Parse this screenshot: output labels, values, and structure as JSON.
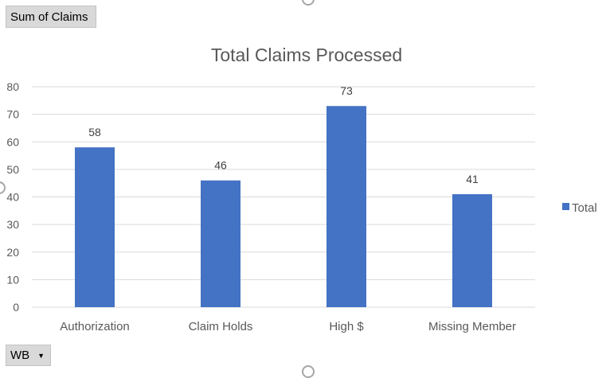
{
  "pivot": {
    "value_field_label": "Sum of Claims",
    "filter_field_label": "WB",
    "dropdown_icon": "triangle-down-icon"
  },
  "colors": {
    "bar": "#4472c4",
    "gridline": "#d9d9d9",
    "axis_text": "#595959"
  },
  "chart_data": {
    "type": "bar",
    "title": "Total Claims Processed",
    "categories": [
      "Authorization",
      "Claim Holds",
      "High $",
      "Missing Member"
    ],
    "series": [
      {
        "name": "Total",
        "values": [
          58,
          46,
          73,
          41
        ]
      }
    ],
    "data_labels": [
      "58",
      "46",
      "73",
      "41"
    ],
    "ylim": [
      0,
      80
    ],
    "y_ticks": [
      0,
      10,
      20,
      30,
      40,
      50,
      60,
      70,
      80
    ],
    "xlabel": "",
    "ylabel": "",
    "grid": true,
    "legend": "right"
  }
}
